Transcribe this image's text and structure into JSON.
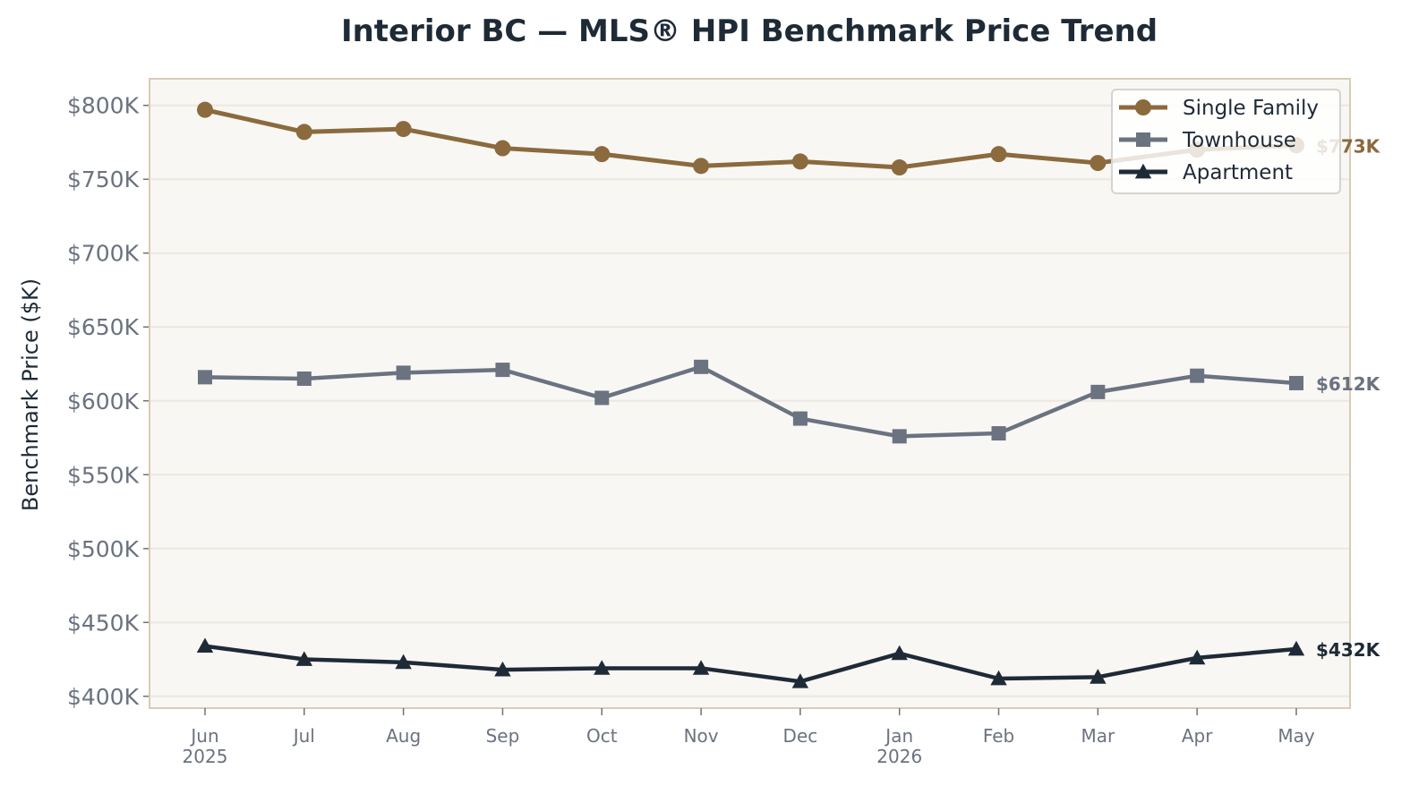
{
  "chart_data": {
    "type": "line",
    "title": "Interior BC — MLS® HPI Benchmark Price Trend",
    "xlabel": "",
    "ylabel": "Benchmark Price ($K)",
    "categories": [
      "Jun",
      "Jul",
      "Aug",
      "Sep",
      "Oct",
      "Nov",
      "Dec",
      "Jan",
      "Feb",
      "Mar",
      "Apr",
      "May"
    ],
    "category_sublabels": [
      "2025",
      "",
      "",
      "",
      "",
      "",
      "",
      "2026",
      "",
      "",
      "",
      ""
    ],
    "ylim": [
      392,
      818
    ],
    "yticks": [
      400,
      450,
      500,
      550,
      600,
      650,
      700,
      750,
      800
    ],
    "ytick_labels": [
      "$400K",
      "$450K",
      "$500K",
      "$550K",
      "$600K",
      "$650K",
      "$700K",
      "$750K",
      "$800K"
    ],
    "grid": true,
    "legend_position": "top-right",
    "series": [
      {
        "name": "Single Family",
        "color": "#8b6a3e",
        "marker": "circle",
        "values": [
          797,
          782,
          784,
          771,
          767,
          759,
          762,
          758,
          767,
          761,
          770,
          773
        ],
        "end_label": "$773K"
      },
      {
        "name": "Townhouse",
        "color": "#6b7280",
        "marker": "square",
        "values": [
          616,
          615,
          619,
          621,
          602,
          623,
          588,
          576,
          578,
          606,
          617,
          612
        ],
        "end_label": "$612K"
      },
      {
        "name": "Apartment",
        "color": "#1f2a37",
        "marker": "triangle",
        "values": [
          434,
          425,
          423,
          418,
          419,
          419,
          410,
          429,
          412,
          413,
          426,
          432
        ],
        "end_label": "$432K"
      }
    ]
  },
  "colors": {
    "plot_background": "#f8f7f4",
    "plot_border": "#d8ccb8",
    "grid": "#ece8e0",
    "text_dark": "#1f2a37",
    "text_muted": "#6b7280"
  }
}
